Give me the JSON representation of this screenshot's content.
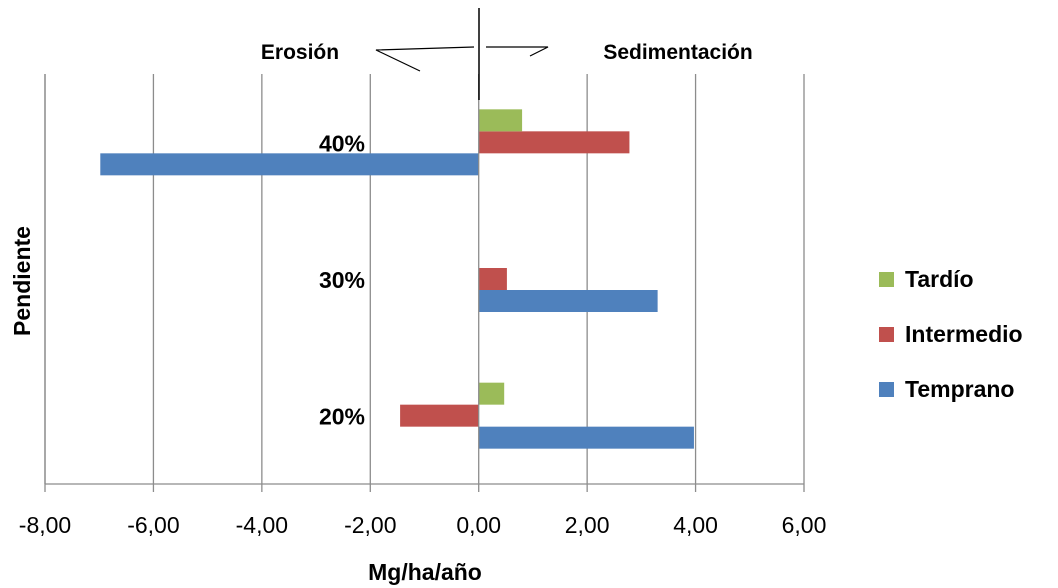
{
  "chart_data": {
    "type": "bar",
    "orientation": "horizontal",
    "categories": [
      "20%",
      "30%",
      "40%"
    ],
    "series": [
      {
        "name": "Temprano",
        "color": "#4F81BD",
        "values": [
          3.97,
          3.3,
          -6.98
        ]
      },
      {
        "name": "Intermedio",
        "color": "#C0504D",
        "values": [
          -1.45,
          0.52,
          2.78
        ]
      },
      {
        "name": "Tardío",
        "color": "#9BBB59",
        "values": [
          0.47,
          0.0,
          0.8
        ]
      }
    ],
    "xlabel": "Mg/ha/año",
    "ylabel": "Pendiente",
    "xlim": [
      -8,
      6
    ],
    "x_ticks": [
      "-8,00",
      "-6,00",
      "-4,00",
      "-2,00",
      "0,00",
      "2,00",
      "4,00",
      "6,00"
    ],
    "grid": "vertical",
    "legend_position": "right",
    "legend_order": [
      "Tardío",
      "Intermedio",
      "Temprano"
    ],
    "annotations": {
      "left": "Erosión",
      "right": "Sedimentación"
    }
  }
}
